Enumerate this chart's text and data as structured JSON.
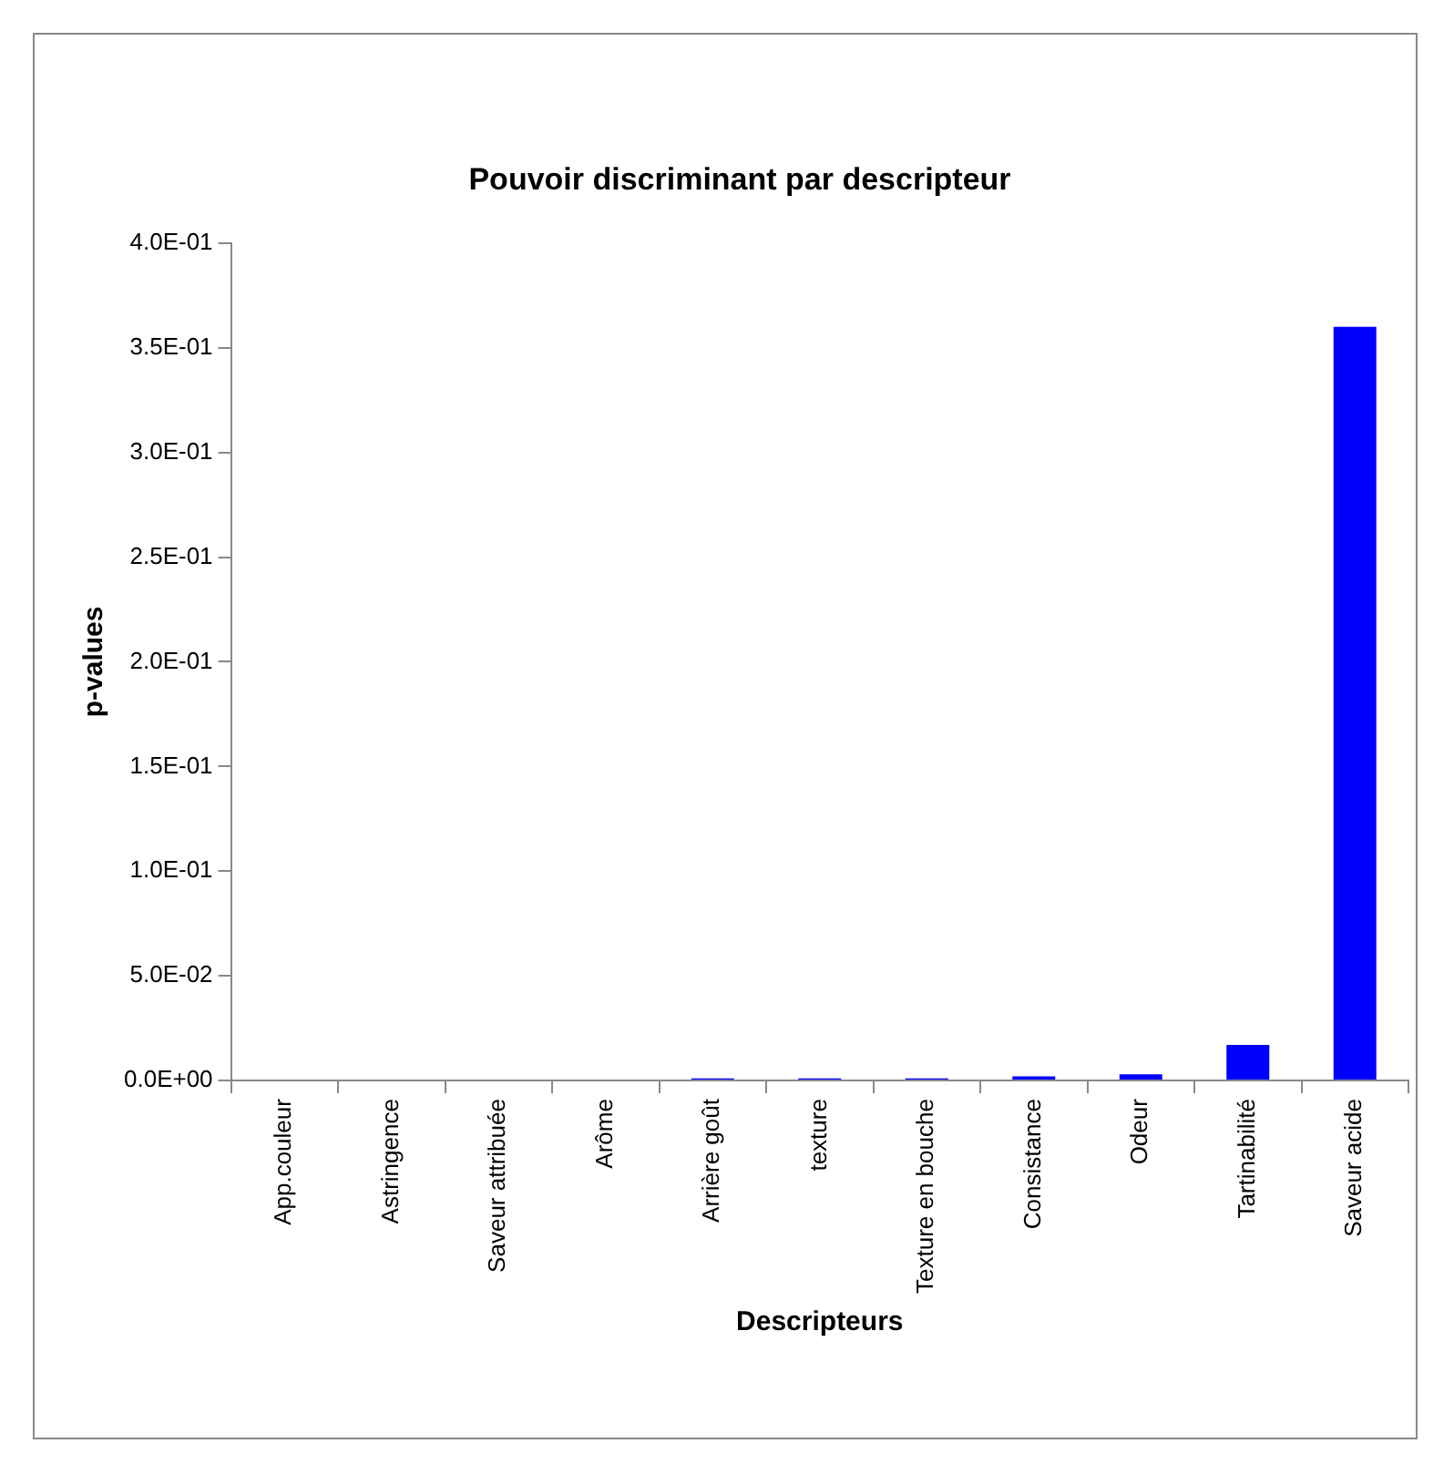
{
  "chart_data": {
    "type": "bar",
    "title": "Pouvoir discriminant par descripteur",
    "xlabel": "Descripteurs",
    "ylabel": "p-values",
    "categories": [
      "App.couleur",
      "Astringence",
      "Saveur attribuée",
      "Arôme",
      "Arrière goût",
      "texture",
      "Texture en bouche",
      "Consistance",
      "Odeur",
      "Tartinabilité",
      "Saveur acide"
    ],
    "values": [
      0,
      0,
      0,
      0,
      0.001,
      0.001,
      0.001,
      0.002,
      0.003,
      0.017,
      0.36
    ],
    "color": "#0000ff",
    "ylim": [
      0,
      0.4
    ],
    "yticks": [
      {
        "value": 0,
        "label": "0.0E+00"
      },
      {
        "value": 0.05,
        "label": "5.0E-02"
      },
      {
        "value": 0.1,
        "label": "1.0E-01"
      },
      {
        "value": 0.15,
        "label": "1.5E-01"
      },
      {
        "value": 0.2,
        "label": "2.0E-01"
      },
      {
        "value": 0.25,
        "label": "2.5E-01"
      },
      {
        "value": 0.3,
        "label": "3.0E-01"
      },
      {
        "value": 0.35,
        "label": "3.5E-01"
      },
      {
        "value": 0.4,
        "label": "4.0E-01"
      }
    ],
    "grid": false,
    "legend": false
  }
}
